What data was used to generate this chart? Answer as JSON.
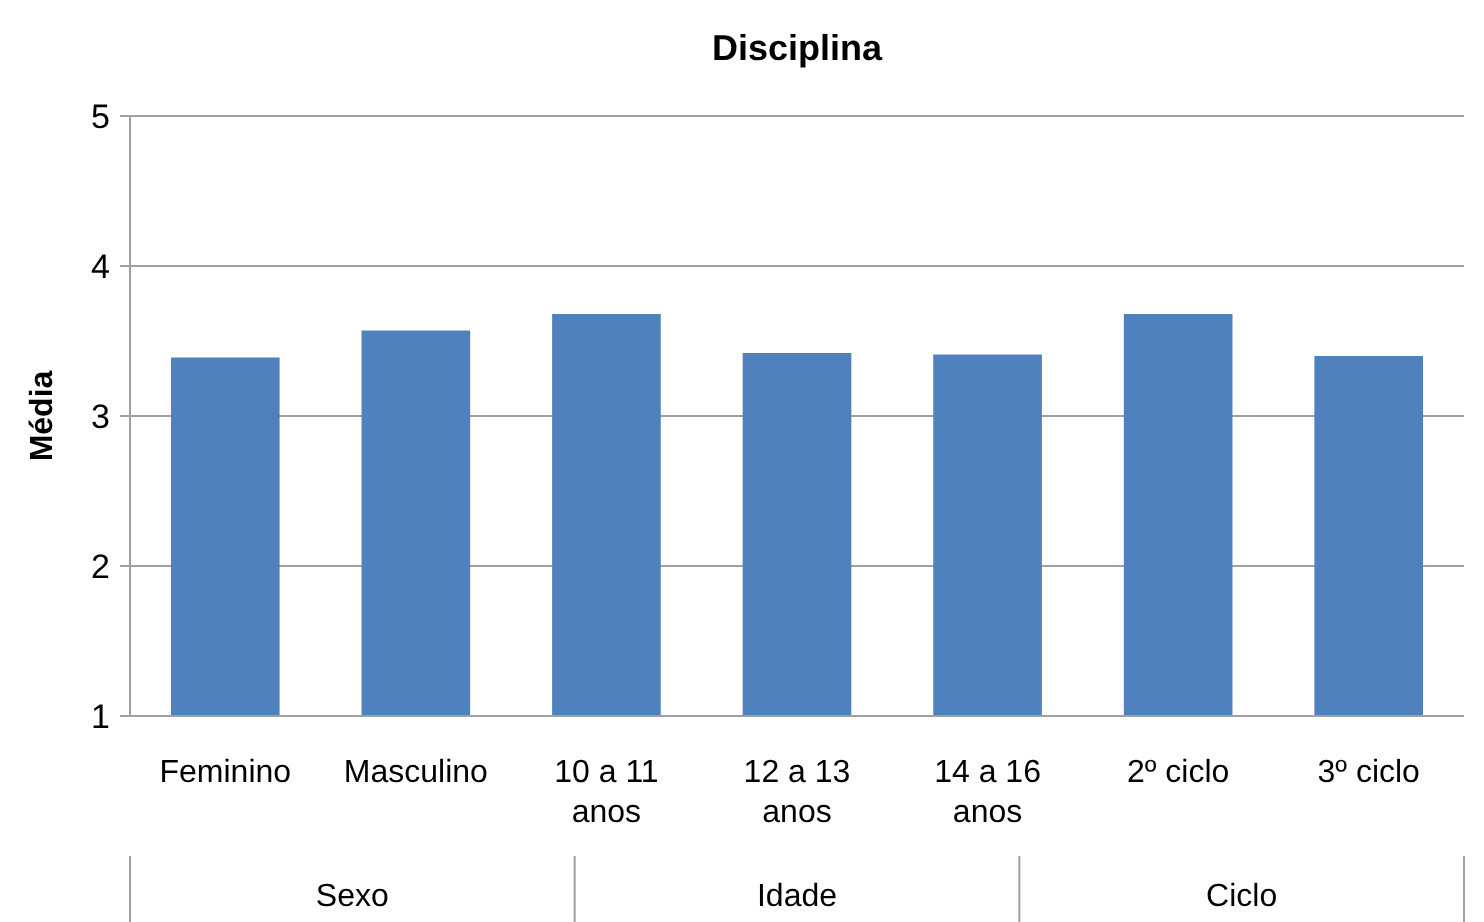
{
  "chart_data": {
    "type": "bar",
    "title": "Disciplina",
    "ylabel": "Média",
    "categories": [
      "Feminino",
      "Masculino",
      "10 a 11 anos",
      "12 a 13 anos",
      "14 a 16 anos",
      "2º ciclo",
      "3º ciclo"
    ],
    "values": [
      3.39,
      3.57,
      3.68,
      3.42,
      3.41,
      3.68,
      3.4
    ],
    "color": "#4f81bd",
    "ylim": [
      1,
      5
    ],
    "yticks": [
      1,
      2,
      3,
      4,
      5
    ],
    "grid": "y",
    "annotations": [
      "Sexo",
      "Idade",
      "Ciclo"
    ]
  }
}
